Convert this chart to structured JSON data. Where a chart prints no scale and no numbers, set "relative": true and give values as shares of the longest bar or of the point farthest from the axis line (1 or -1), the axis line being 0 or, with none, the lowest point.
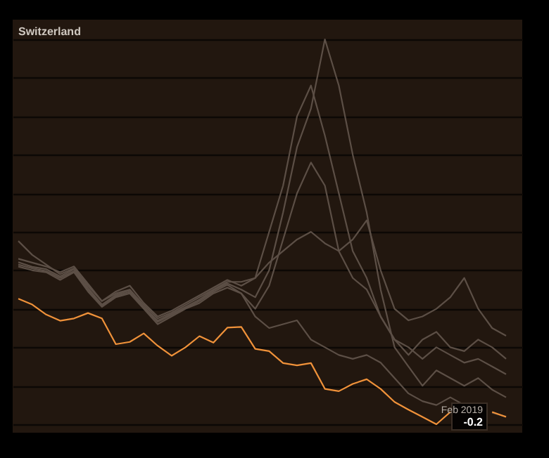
{
  "chart_data": {
    "type": "line",
    "title": "Switzerland",
    "relative": true,
    "grid": "y",
    "marker": "none",
    "line_style": "solid",
    "categories": [
      null,
      null,
      null,
      null,
      null,
      null,
      null,
      null,
      null,
      null,
      null,
      null,
      null,
      null,
      null,
      null,
      null,
      null,
      null,
      null,
      null,
      null,
      null,
      null,
      null,
      null,
      null,
      null,
      null,
      null,
      null,
      null,
      null,
      null,
      null,
      null
    ],
    "series": [
      {
        "color": "#5c4f46",
        "values": [
          0.421,
          0.409,
          0.403,
          0.384,
          0.403,
          0.354,
          0.311,
          0.336,
          0.348,
          0.305,
          0.269,
          0.287,
          0.305,
          0.324,
          0.348,
          0.366,
          0.35,
          0.33,
          0.4,
          0.55,
          0.72,
          0.82,
          1.0,
          0.88,
          0.7,
          0.55,
          0.35,
          0.2,
          0.15,
          0.1,
          0.14,
          0.12,
          0.1,
          0.12,
          0.09,
          0.07
        ]
      },
      {
        "color": "#5c4f46",
        "values": [
          0.43,
          0.42,
          0.41,
          0.395,
          0.41,
          0.365,
          0.32,
          0.345,
          0.36,
          0.315,
          0.28,
          0.295,
          0.315,
          0.335,
          0.355,
          0.375,
          0.36,
          0.38,
          0.5,
          0.62,
          0.8,
          0.88,
          0.75,
          0.6,
          0.45,
          0.38,
          0.28,
          0.22,
          0.2,
          0.17,
          0.2,
          0.18,
          0.16,
          0.17,
          0.15,
          0.13
        ]
      },
      {
        "color": "#5c4f46",
        "values": [
          0.41,
          0.4,
          0.395,
          0.375,
          0.395,
          0.345,
          0.305,
          0.33,
          0.34,
          0.3,
          0.26,
          0.28,
          0.3,
          0.315,
          0.34,
          0.355,
          0.34,
          0.3,
          0.36,
          0.48,
          0.6,
          0.68,
          0.62,
          0.45,
          0.38,
          0.35,
          0.28,
          0.22,
          0.18,
          0.22,
          0.24,
          0.2,
          0.19,
          0.22,
          0.2,
          0.17
        ]
      },
      {
        "color": "#5c4f46",
        "values": [
          0.476,
          0.44,
          0.415,
          0.39,
          0.405,
          0.36,
          0.32,
          0.34,
          0.35,
          0.31,
          0.275,
          0.29,
          0.31,
          0.33,
          0.35,
          0.37,
          0.37,
          0.38,
          0.42,
          0.45,
          0.48,
          0.5,
          0.47,
          0.45,
          0.48,
          0.53,
          0.4,
          0.3,
          0.27,
          0.28,
          0.3,
          0.33,
          0.38,
          0.3,
          0.25,
          0.23
        ]
      },
      {
        "color": "#5c4f46",
        "values": [
          0.415,
          0.405,
          0.398,
          0.38,
          0.398,
          0.35,
          0.308,
          0.333,
          0.344,
          0.302,
          0.266,
          0.284,
          0.302,
          0.32,
          0.344,
          0.362,
          0.34,
          0.28,
          0.25,
          0.26,
          0.27,
          0.22,
          0.2,
          0.18,
          0.17,
          0.18,
          0.16,
          0.12,
          0.08,
          0.06,
          0.05,
          0.07,
          0.05,
          null,
          0.03,
          0.02
        ]
      },
      {
        "color": "#f0923a",
        "values": [
          0.326,
          0.311,
          0.285,
          0.269,
          0.275,
          0.289,
          0.275,
          0.208,
          0.214,
          0.236,
          0.204,
          0.178,
          0.2,
          0.229,
          0.212,
          0.251,
          0.253,
          0.196,
          0.19,
          0.159,
          0.153,
          0.159,
          0.092,
          0.086,
          0.105,
          0.117,
          0.092,
          0.058,
          0.038,
          0.019,
          0.0,
          0.032,
          null,
          null,
          0.032,
          0.019
        ]
      }
    ],
    "annotations": [
      "Feb 2019",
      "-0.2"
    ]
  }
}
